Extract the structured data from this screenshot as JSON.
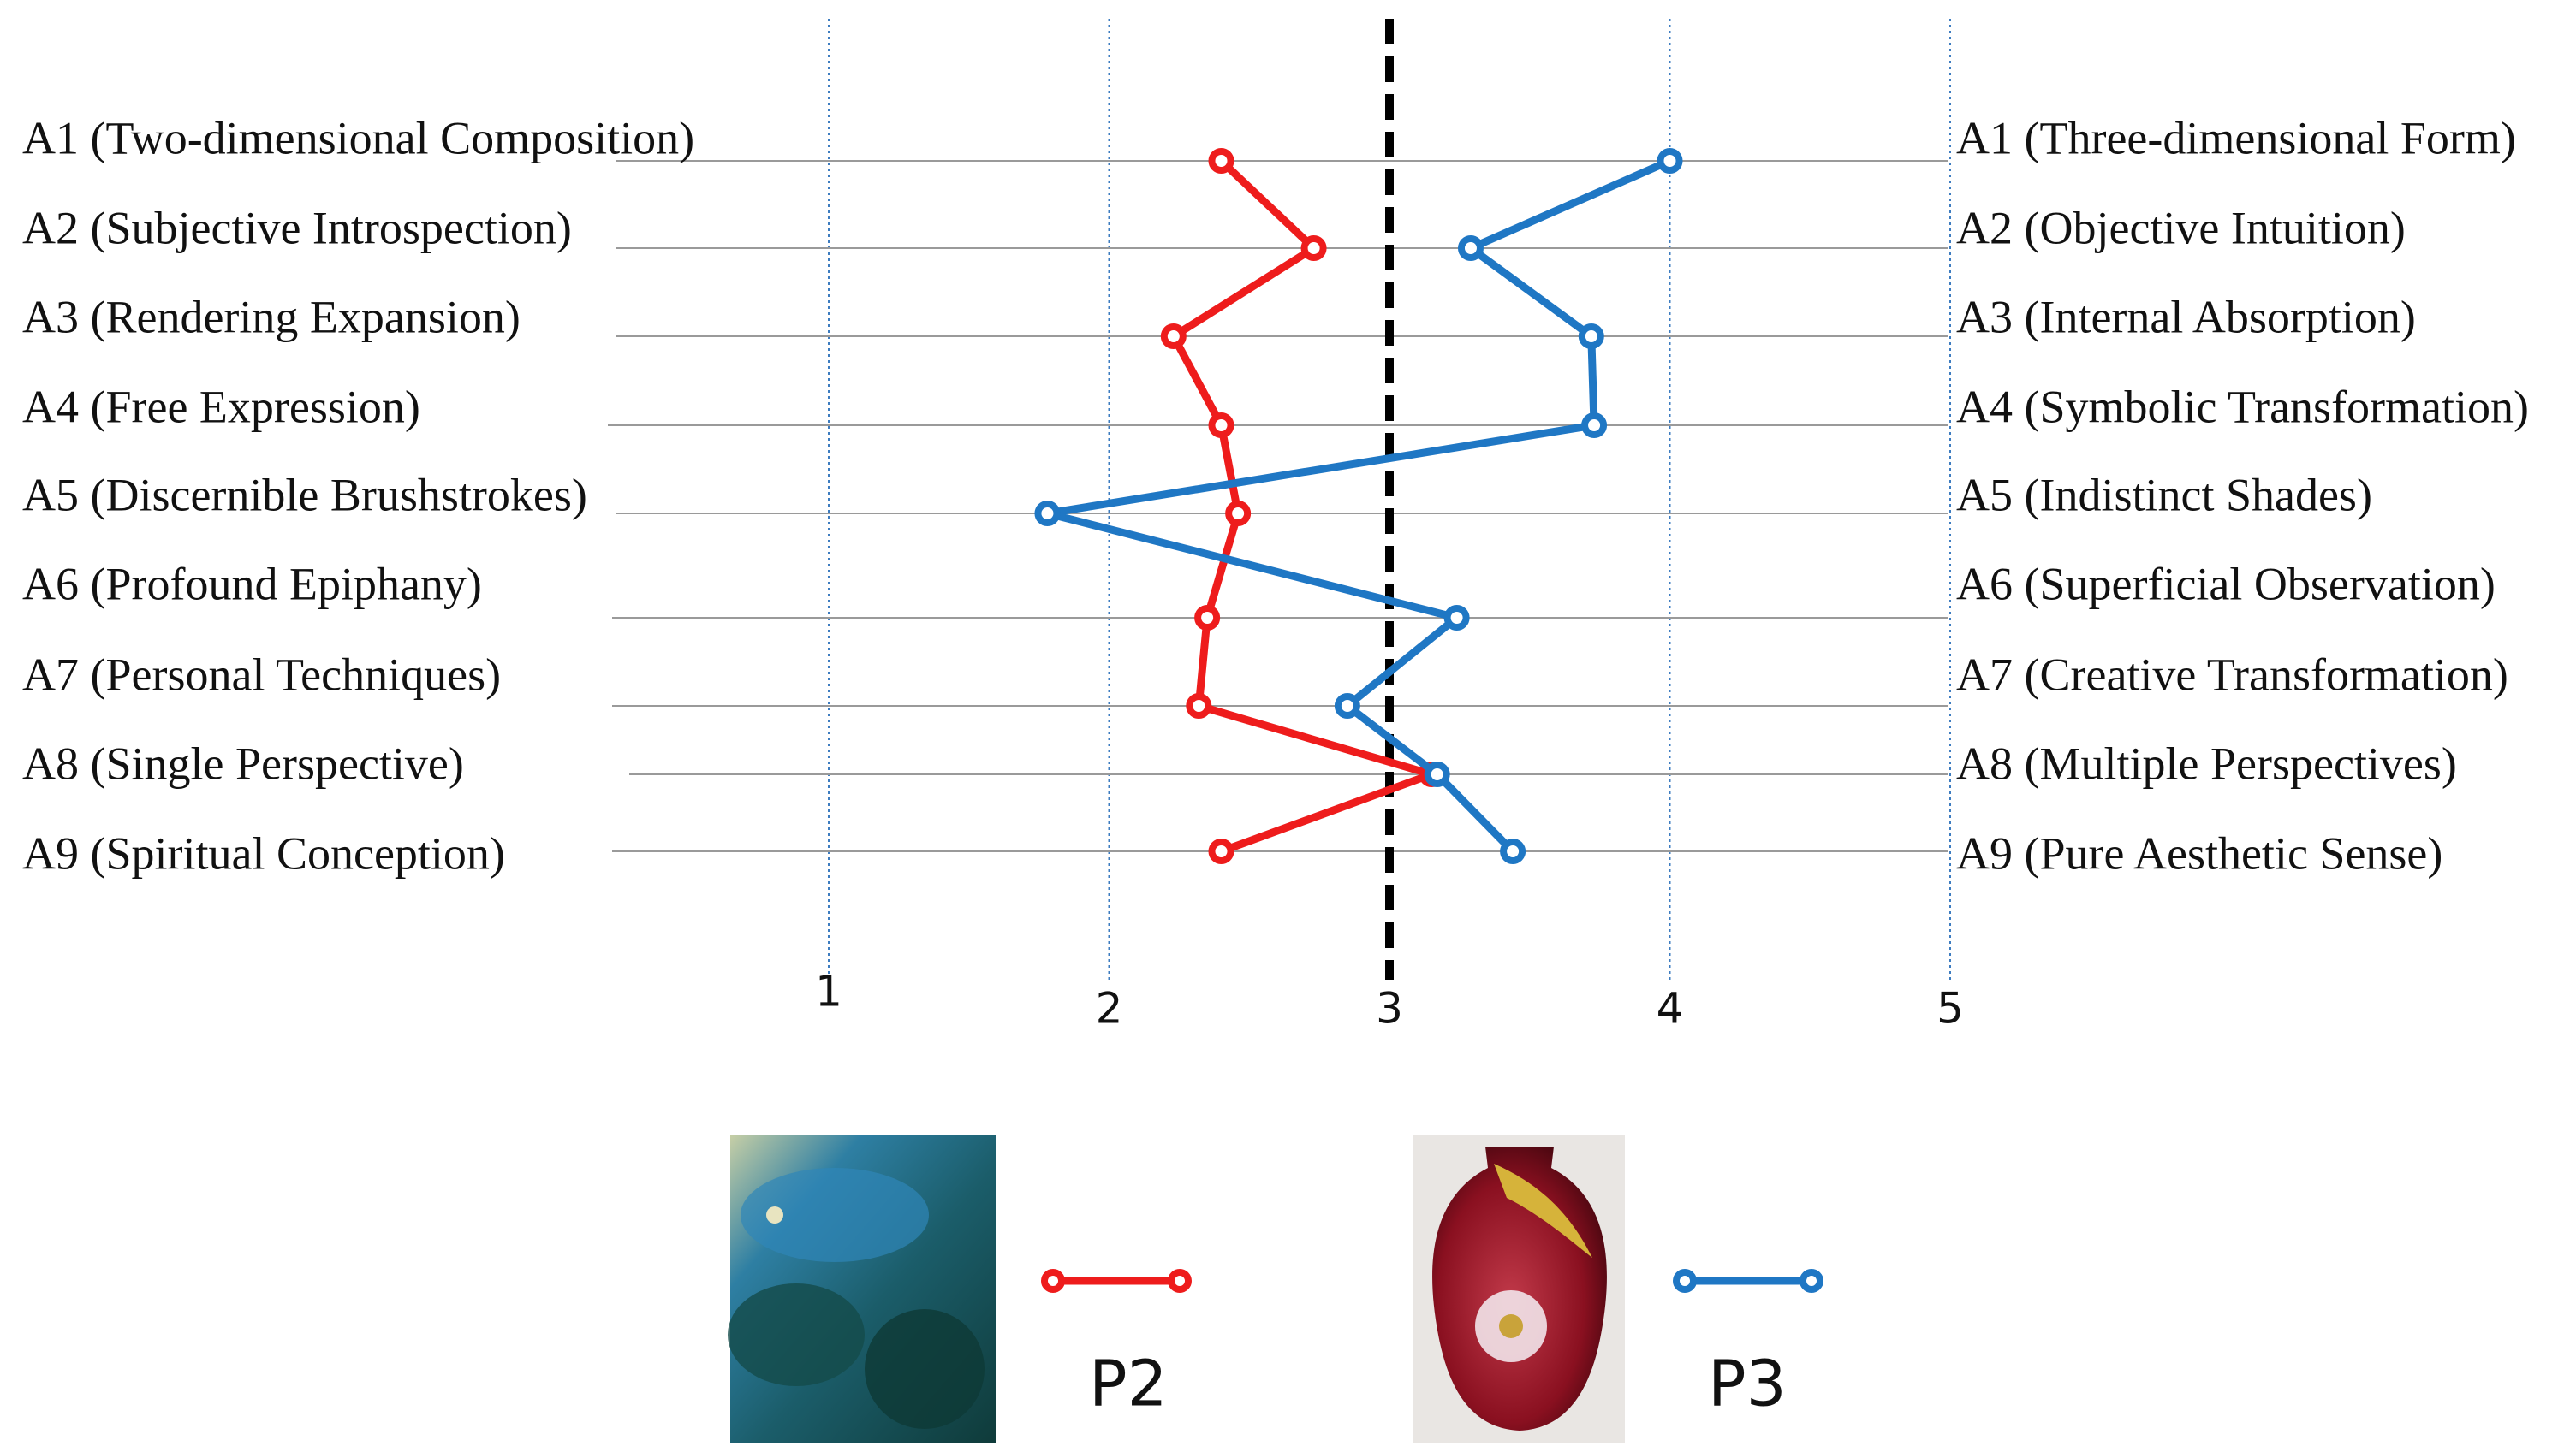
{
  "chart_data": {
    "type": "line",
    "x_ticks": [
      1,
      2,
      3,
      4,
      5
    ],
    "xlim": [
      1,
      5
    ],
    "reference_line_x": 3,
    "categories": [
      "A1",
      "A2",
      "A3",
      "A4",
      "A5",
      "A6",
      "A7",
      "A8",
      "A9"
    ],
    "left_labels": [
      "A1 (Two-dimensional Composition)",
      "A2 (Subjective Introspection)",
      "A3 (Rendering Expansion)",
      "A4 (Free Expression)",
      "A5 (Discernible Brushstrokes)",
      "A6 (Profound Epiphany)",
      "A7 (Personal Techniques)",
      "A8 (Single Perspective)",
      "A9 (Spiritual Conception)"
    ],
    "right_labels": [
      "A1 (Three-dimensional Form)",
      "A2 (Objective Intuition)",
      "A3 (Internal Absorption)",
      "A4 (Symbolic Transformation)",
      "A5 (Indistinct Shades)",
      "A6 (Superficial Observation)",
      "A7 (Creative Transformation)",
      "A8 (Multiple Perspectives)",
      "A9 (Pure Aesthetic Sense)"
    ],
    "series": [
      {
        "name": "P2",
        "color": "#ee1c1c",
        "values": [
          2.4,
          2.73,
          2.23,
          2.4,
          2.46,
          2.35,
          2.32,
          3.15,
          2.4
        ]
      },
      {
        "name": "P3",
        "color": "#1f77c4",
        "values": [
          4.0,
          3.29,
          3.72,
          3.73,
          1.78,
          3.24,
          2.85,
          3.17,
          3.44
        ]
      }
    ],
    "grid": true,
    "legend": "bottom-center"
  },
  "legend": {
    "p2_image": "painting-thumbnail",
    "p3_image": "vase-thumbnail"
  }
}
